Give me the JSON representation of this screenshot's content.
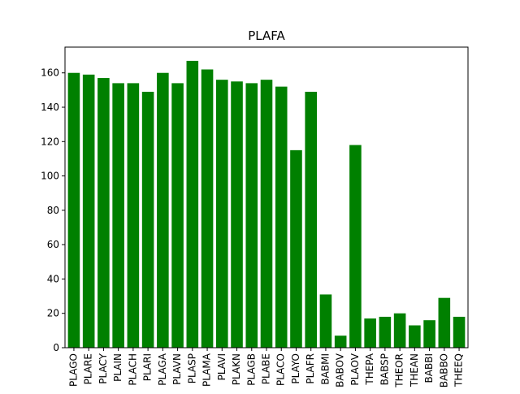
{
  "chart_data": {
    "type": "bar",
    "title": "PLAFA",
    "xlabel": "",
    "ylabel": "",
    "categories": [
      "PLAGO",
      "PLARE",
      "PLACY",
      "PLAIN",
      "PLACH",
      "PLARI",
      "PLAGA",
      "PLAVN",
      "PLASP",
      "PLAMA",
      "PLAVI",
      "PLAKN",
      "PLAGB",
      "PLABE",
      "PLACO",
      "PLAYO",
      "PLAFR",
      "BABMI",
      "BABOV",
      "PLAOV",
      "THEPA",
      "BABSP",
      "THEOR",
      "THEAN",
      "BABBI",
      "BABBO",
      "THEEQ"
    ],
    "values": [
      160,
      159,
      157,
      154,
      154,
      149,
      160,
      154,
      167,
      162,
      156,
      155,
      154,
      156,
      152,
      115,
      149,
      31,
      7,
      118,
      17,
      18,
      20,
      13,
      16,
      29,
      18
    ],
    "ylim": [
      0,
      175
    ],
    "yticks": [
      0,
      20,
      40,
      60,
      80,
      100,
      120,
      140,
      160
    ],
    "ytick_labels": [
      "0",
      "20",
      "40",
      "60",
      "80",
      "100",
      "120",
      "140",
      "160"
    ],
    "bar_color": "#008000",
    "grid": false,
    "legend": "none"
  }
}
